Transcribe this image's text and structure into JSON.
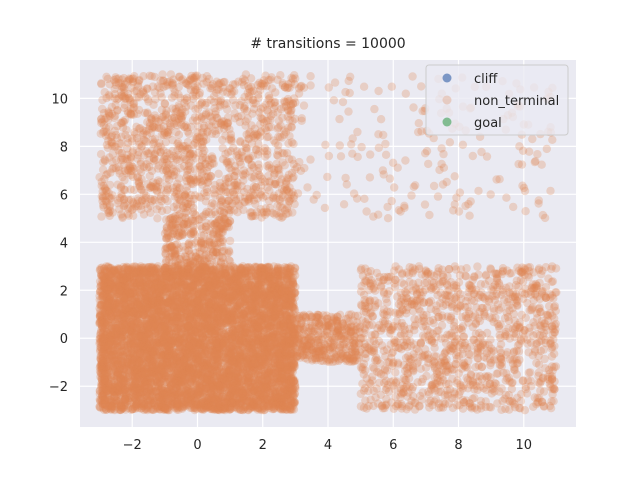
{
  "chart_data": {
    "type": "scatter",
    "title": "# transitions = 10000",
    "xlabel": "",
    "ylabel": "",
    "xlim": [
      -3.6,
      11.6
    ],
    "ylim": [
      -3.7,
      11.6
    ],
    "xticks": [
      -2,
      0,
      2,
      4,
      6,
      8,
      10
    ],
    "yticks": [
      -2,
      0,
      2,
      4,
      6,
      8,
      10
    ],
    "grid": true,
    "legend_position": "top-right",
    "background": "#eaeaf2",
    "series": [
      {
        "name": "cliff",
        "color": "#4c72b0",
        "count": 0,
        "points": []
      },
      {
        "name": "non_terminal",
        "color": "#dd8452",
        "count": 10000,
        "regions": [
          {
            "shape": "rect",
            "x": [
              -3,
              3
            ],
            "y": [
              -3,
              3
            ],
            "count": 6800
          },
          {
            "shape": "rect",
            "x": [
              -1,
              1
            ],
            "y": [
              3,
              5
            ],
            "count": 260
          },
          {
            "shape": "rect",
            "x": [
              -3,
              3
            ],
            "y": [
              5,
              11
            ],
            "count": 1250
          },
          {
            "shape": "rect",
            "x": [
              3,
              5
            ],
            "y": [
              -1,
              1
            ],
            "count": 350
          },
          {
            "shape": "rect",
            "x": [
              5,
              11
            ],
            "y": [
              -3,
              3
            ],
            "count": 1150
          },
          {
            "shape": "rect",
            "x": [
              3,
              11
            ],
            "y": [
              5,
              11
            ],
            "count": 190
          }
        ]
      },
      {
        "name": "goal",
        "color": "#55a868",
        "count": 0,
        "points": []
      }
    ]
  }
}
